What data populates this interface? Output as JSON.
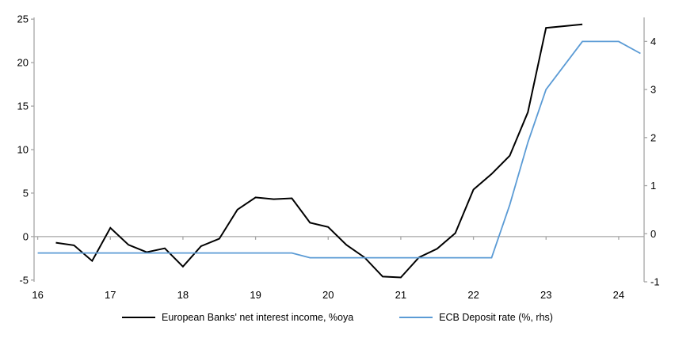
{
  "chart_data": {
    "type": "line",
    "title": "",
    "x_axis": {
      "ticks": [
        16,
        17,
        18,
        19,
        20,
        21,
        22,
        23,
        24
      ],
      "range": [
        15.95,
        24.35
      ]
    },
    "left_axis": {
      "ticks": [
        -5,
        0,
        5,
        10,
        15,
        20,
        25
      ],
      "range": [
        -5.2,
        25.2
      ]
    },
    "right_axis": {
      "ticks": [
        -1,
        0,
        1,
        2,
        3,
        4
      ],
      "range": [
        -1,
        4.5
      ]
    },
    "grid": "off",
    "zero_line": true,
    "axis_color": "#a6a6a6",
    "text_color": "#000000",
    "legend_position": "bottom-center",
    "series": [
      {
        "name": "European Banks' net interest income, %oya",
        "color": "#000000",
        "width": 2,
        "axis": "left",
        "x": [
          16.25,
          16.5,
          16.75,
          17.0,
          17.25,
          17.5,
          17.75,
          18.0,
          18.25,
          18.5,
          18.75,
          19.0,
          19.25,
          19.5,
          19.75,
          20.0,
          20.25,
          20.5,
          20.75,
          21.0,
          21.25,
          21.5,
          21.75,
          22.0,
          22.25,
          22.5,
          22.75,
          23.0,
          23.25,
          23.5
        ],
        "values": [
          -0.7,
          -1.0,
          -2.8,
          1.0,
          -0.95,
          -1.8,
          -1.35,
          -3.45,
          -1.1,
          -0.25,
          3.1,
          4.5,
          4.3,
          4.4,
          1.6,
          1.1,
          -0.95,
          -2.4,
          -4.6,
          -4.7,
          -2.4,
          -1.4,
          0.4,
          5.4,
          7.2,
          9.3,
          14.3,
          24.0,
          24.2,
          24.4
        ]
      },
      {
        "name": "ECB Deposit rate (%, rhs)",
        "color": "#5b9bd5",
        "width": 1.8,
        "axis": "right",
        "x": [
          16.0,
          19.5,
          19.75,
          22.25,
          22.5,
          22.75,
          23.0,
          23.25,
          23.5,
          23.75,
          24.0,
          24.3
        ],
        "values": [
          -0.4,
          -0.4,
          -0.5,
          -0.5,
          0.6,
          1.9,
          3.0,
          3.5,
          4.0,
          4.0,
          4.0,
          3.75
        ]
      }
    ]
  }
}
